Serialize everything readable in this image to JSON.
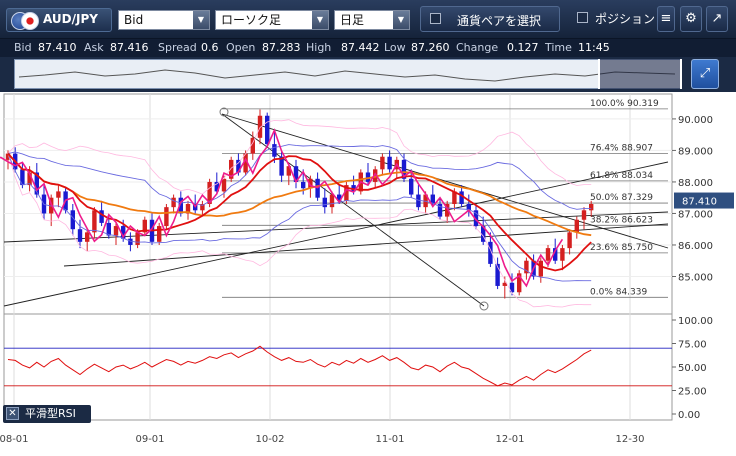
{
  "toolbar": {
    "symbol": "AUD/JPY",
    "price_type": "Bid",
    "chart_style": "ローソク足",
    "timeframe": "日足",
    "pair_select_label": "通貨ペアを選択",
    "position_label": "ポジション"
  },
  "quote": {
    "bid_label": "Bid",
    "bid": "87.410",
    "ask_label": "Ask",
    "ask": "87.416",
    "spread_label": "Spread",
    "spread": "0.6",
    "open_label": "Open",
    "open": "87.283",
    "high_label": "High",
    "high": "87.442",
    "low_label": "Low",
    "low": "87.260",
    "change_label": "Change",
    "change": "0.127",
    "time_label": "Time",
    "time": "11:45"
  },
  "indicator": {
    "name": "平滑型RSI"
  },
  "colors": {
    "up": "#d42020",
    "down": "#1a1ad0",
    "ma_red": "#e01010",
    "ma_orange": "#f07a10",
    "magenta": "#ee1c8c",
    "band": "#6a6ae0",
    "accent": "#1b2a44"
  },
  "chart_data": [
    {
      "type": "candlestick",
      "x_ticks": [
        "08-01",
        "09-01",
        "10-02",
        "11-01",
        "12-01",
        "12-30"
      ],
      "y_ticks": [
        "90.000",
        "89.000",
        "88.000",
        "87.000",
        "86.000",
        "85.000"
      ],
      "ylim": [
        84.0,
        90.6
      ],
      "current_price": "87.410",
      "fibonacci": [
        {
          "label": "100.0%",
          "value": "90.319"
        },
        {
          "label": "76.4%",
          "value": "88.907"
        },
        {
          "label": "61.8%",
          "value": "88.034"
        },
        {
          "label": "50.0%",
          "value": "87.329"
        },
        {
          "label": "38.2%",
          "value": "86.623"
        },
        {
          "label": "23.6%",
          "value": "85.750"
        },
        {
          "label": "0.0%",
          "value": "84.339"
        }
      ],
      "candles": [
        [
          88.7,
          89.0,
          88.4,
          88.9
        ],
        [
          88.9,
          89.1,
          88.3,
          88.4
        ],
        [
          88.4,
          88.6,
          87.8,
          87.9
        ],
        [
          87.9,
          88.5,
          87.7,
          88.3
        ],
        [
          88.3,
          88.6,
          87.5,
          87.6
        ],
        [
          87.6,
          87.9,
          86.8,
          87.0
        ],
        [
          87.0,
          87.6,
          86.6,
          87.5
        ],
        [
          87.5,
          87.9,
          87.2,
          87.7
        ],
        [
          87.7,
          87.8,
          87.0,
          87.1
        ],
        [
          87.1,
          87.3,
          86.3,
          86.5
        ],
        [
          86.5,
          86.8,
          85.9,
          86.1
        ],
        [
          86.1,
          86.5,
          85.8,
          86.4
        ],
        [
          86.4,
          87.2,
          86.2,
          87.1
        ],
        [
          87.1,
          87.4,
          86.6,
          86.7
        ],
        [
          86.7,
          86.9,
          86.2,
          86.3
        ],
        [
          86.3,
          86.7,
          86.0,
          86.6
        ],
        [
          86.6,
          86.8,
          86.1,
          86.2
        ],
        [
          86.2,
          86.4,
          85.8,
          86.0
        ],
        [
          86.0,
          86.5,
          85.9,
          86.4
        ],
        [
          86.4,
          86.9,
          86.3,
          86.8
        ],
        [
          86.8,
          87.0,
          86.0,
          86.1
        ],
        [
          86.1,
          86.7,
          86.0,
          86.6
        ],
        [
          86.6,
          87.3,
          86.5,
          87.2
        ],
        [
          87.2,
          87.6,
          87.0,
          87.5
        ],
        [
          87.5,
          87.7,
          86.9,
          87.0
        ],
        [
          87.0,
          87.4,
          86.8,
          87.3
        ],
        [
          87.3,
          87.6,
          87.0,
          87.1
        ],
        [
          87.1,
          87.4,
          86.9,
          87.3
        ],
        [
          87.3,
          88.1,
          87.2,
          88.0
        ],
        [
          88.0,
          88.3,
          87.6,
          87.7
        ],
        [
          87.7,
          88.2,
          87.5,
          88.1
        ],
        [
          88.1,
          88.8,
          88.0,
          88.7
        ],
        [
          88.7,
          88.9,
          88.2,
          88.3
        ],
        [
          88.3,
          89.0,
          88.2,
          88.9
        ],
        [
          88.9,
          89.6,
          88.7,
          89.4
        ],
        [
          89.4,
          90.3,
          89.2,
          90.1
        ],
        [
          90.1,
          90.2,
          89.1,
          89.2
        ],
        [
          89.2,
          89.6,
          88.6,
          88.8
        ],
        [
          88.8,
          89.0,
          88.0,
          88.2
        ],
        [
          88.2,
          88.6,
          87.9,
          88.5
        ],
        [
          88.5,
          88.7,
          87.8,
          88.0
        ],
        [
          88.0,
          88.4,
          87.6,
          87.8
        ],
        [
          87.8,
          88.2,
          87.5,
          88.1
        ],
        [
          88.1,
          88.3,
          87.4,
          87.5
        ],
        [
          87.5,
          87.8,
          87.0,
          87.2
        ],
        [
          87.2,
          87.7,
          87.0,
          87.6
        ],
        [
          87.6,
          87.9,
          87.3,
          87.4
        ],
        [
          87.4,
          88.0,
          87.3,
          87.9
        ],
        [
          87.9,
          88.2,
          87.6,
          87.7
        ],
        [
          87.7,
          88.4,
          87.6,
          88.3
        ],
        [
          88.3,
          88.6,
          87.9,
          88.0
        ],
        [
          88.0,
          88.5,
          87.8,
          88.4
        ],
        [
          88.4,
          88.9,
          88.2,
          88.8
        ],
        [
          88.8,
          89.0,
          88.3,
          88.4
        ],
        [
          88.4,
          88.8,
          88.1,
          88.7
        ],
        [
          88.7,
          88.9,
          88.0,
          88.1
        ],
        [
          88.1,
          88.4,
          87.5,
          87.6
        ],
        [
          87.6,
          87.9,
          87.1,
          87.2
        ],
        [
          87.2,
          87.7,
          87.0,
          87.6
        ],
        [
          87.6,
          87.9,
          87.2,
          87.3
        ],
        [
          87.3,
          87.5,
          86.8,
          86.9
        ],
        [
          86.9,
          87.4,
          86.7,
          87.3
        ],
        [
          87.3,
          87.8,
          87.1,
          87.7
        ],
        [
          87.7,
          87.9,
          87.2,
          87.3
        ],
        [
          87.3,
          87.6,
          86.9,
          87.1
        ],
        [
          87.1,
          87.3,
          86.5,
          86.6
        ],
        [
          86.6,
          86.9,
          86.0,
          86.1
        ],
        [
          86.1,
          86.4,
          85.3,
          85.4
        ],
        [
          85.4,
          85.6,
          84.6,
          84.7
        ],
        [
          84.7,
          85.0,
          84.3,
          84.8
        ],
        [
          84.8,
          85.1,
          84.4,
          84.5
        ],
        [
          84.5,
          85.2,
          84.4,
          85.1
        ],
        [
          85.1,
          85.6,
          84.9,
          85.5
        ],
        [
          85.5,
          85.7,
          84.9,
          85.0
        ],
        [
          85.0,
          85.6,
          84.8,
          85.5
        ],
        [
          85.5,
          86.0,
          85.3,
          85.9
        ],
        [
          85.9,
          86.2,
          85.4,
          85.5
        ],
        [
          85.5,
          86.0,
          85.2,
          85.9
        ],
        [
          85.9,
          86.5,
          85.7,
          86.4
        ],
        [
          86.4,
          86.9,
          86.2,
          86.8
        ],
        [
          86.8,
          87.2,
          86.5,
          87.1
        ],
        [
          87.1,
          87.4,
          86.9,
          87.3
        ]
      ]
    },
    {
      "type": "line",
      "ylim": [
        0,
        100
      ],
      "y_ticks": [
        "100.00",
        "75.00",
        "50.00",
        "25.00",
        "0.00"
      ],
      "levels": [
        70,
        30
      ],
      "series": [
        {
          "values": [
            58,
            57,
            52,
            49,
            55,
            50,
            56,
            59,
            52,
            47,
            42,
            48,
            53,
            49,
            45,
            50,
            52,
            48,
            51,
            55,
            50,
            54,
            58,
            56,
            52,
            56,
            54,
            57,
            61,
            59,
            63,
            65,
            60,
            64,
            67,
            72,
            66,
            61,
            57,
            60,
            56,
            55,
            58,
            53,
            50,
            55,
            52,
            57,
            54,
            59,
            55,
            58,
            62,
            57,
            60,
            55,
            49,
            47,
            52,
            50,
            45,
            51,
            55,
            50,
            48,
            43,
            38,
            34,
            30,
            33,
            31,
            36,
            40,
            36,
            42,
            47,
            44,
            48,
            53,
            58,
            64,
            68
          ]
        }
      ]
    }
  ]
}
